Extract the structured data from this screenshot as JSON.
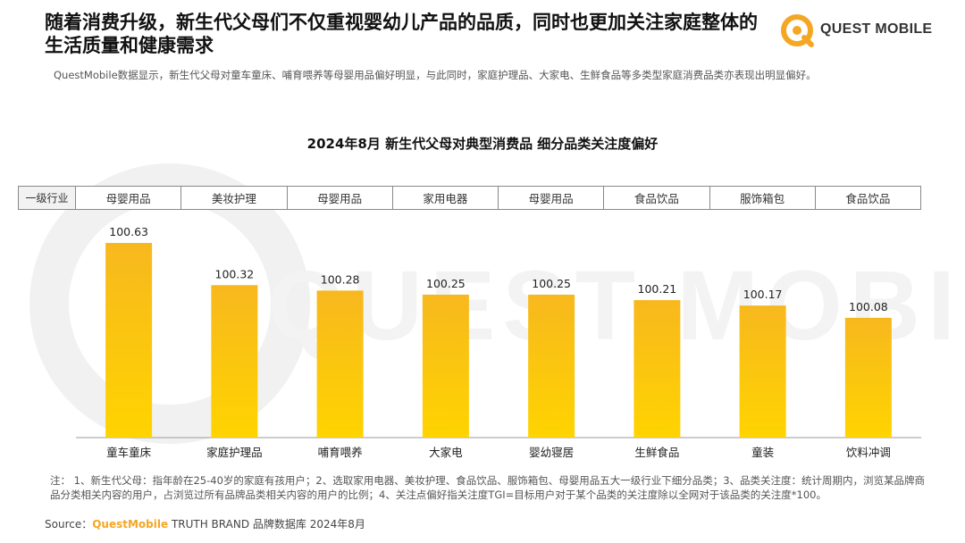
{
  "headline": "随着消费升级，新生代父母们不仅重视婴幼儿产品的品质，同时也更加关注家庭整体的生活质量和健康需求",
  "logo": {
    "text": "QUEST MOBILE",
    "watermark_text": "QUEST MOBILE"
  },
  "subtext": "QuestMobile数据显示，新生代父母对童车童床、哺育喂养等母婴用品偏好明显，与此同时，家庭护理品、大家电、生鲜食品等多类型家庭消费品类亦表现出明显偏好。",
  "row_header": "一级行业",
  "industries": [
    "母婴用品",
    "美妆护理",
    "母婴用品",
    "家用电器",
    "母婴用品",
    "食品饮品",
    "服饰箱包",
    "食品饮品"
  ],
  "footnote": "注：  1、新生代父母：指年龄在25-40岁的家庭有孩用户；2、选取家用电器、美妆护理、食品饮品、服饰箱包、母婴用品五大一级行业下细分品类；3、品类关注度：统计周期内，浏览某品牌商品分类相关内容的用户，占浏览过所有品牌品类相关内容的用户的比例；4、关注点偏好指关注度TGI=目标用户对于某个品类的关注度除以全网对于该品类的关注度*100。",
  "source": {
    "prefix": "Source：",
    "brand": "QuestMobile",
    "rest": " TRUTH BRAND 品牌数据库 2024年8月"
  },
  "colors": {
    "bar_top": "#f7b81e",
    "bar_bottom": "#ffd400",
    "brand": "#f5a623"
  },
  "chart_data": {
    "type": "bar",
    "title": "2024年8月  新生代父母对典型消费品 细分品类关注度偏好",
    "categories": [
      "童车童床",
      "家庭护理品",
      "哺育喂养",
      "大家电",
      "婴幼寝居",
      "生鲜食品",
      "童装",
      "饮料冲调"
    ],
    "values": [
      100.63,
      100.32,
      100.28,
      100.25,
      100.25,
      100.21,
      100.17,
      100.08
    ],
    "xlabel": "",
    "ylabel": "",
    "grid": false,
    "legend": "none"
  }
}
